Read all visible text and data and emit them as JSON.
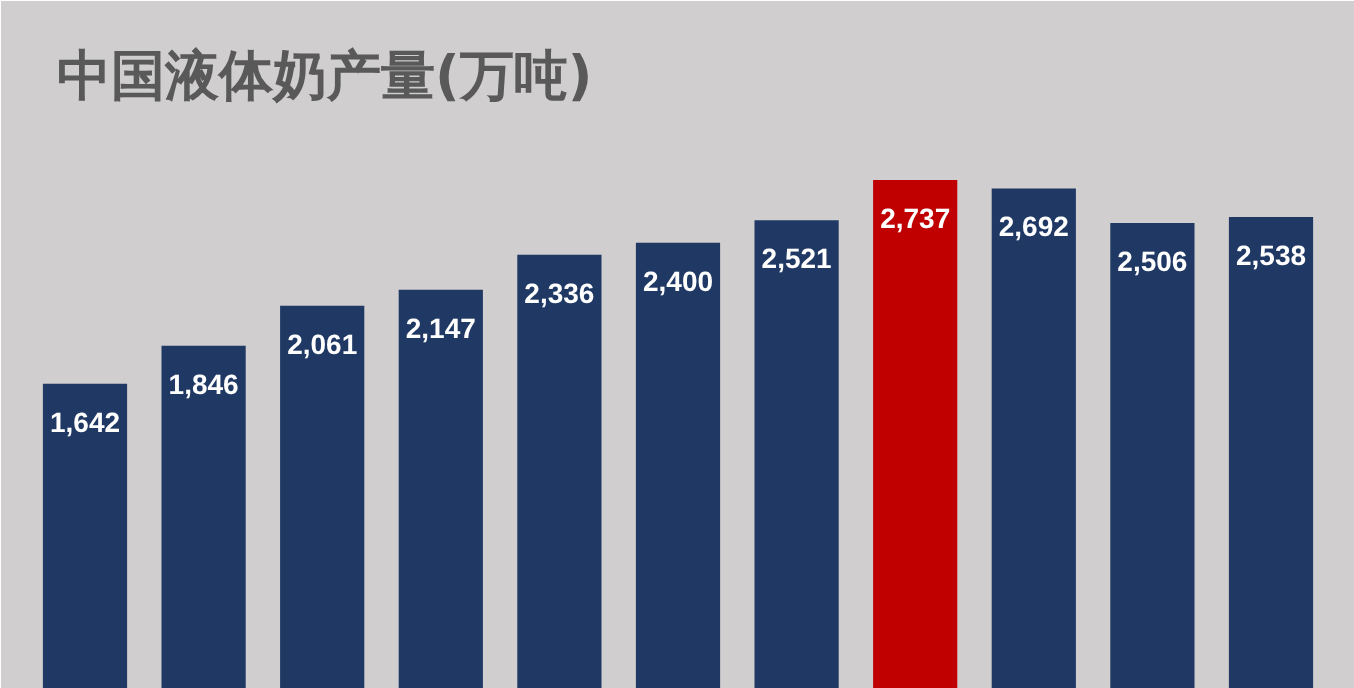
{
  "chart_data": {
    "type": "bar",
    "title": "中国液体奶产量(万吨)",
    "categories": [
      null,
      null,
      null,
      null,
      null,
      null,
      null,
      null,
      null,
      null,
      null
    ],
    "values": [
      1642,
      1846,
      2061,
      2147,
      2336,
      2400,
      2521,
      2737,
      2692,
      2506,
      2538
    ],
    "colors": [
      "#1f3864",
      "#1f3864",
      "#1f3864",
      "#1f3864",
      "#1f3864",
      "#1f3864",
      "#1f3864",
      "#c00000",
      "#1f3864",
      "#1f3864",
      "#1f3864"
    ],
    "value_labels": [
      "1,642",
      "1,846",
      "2,061",
      "2,147",
      "2,336",
      "2,400",
      "2,521",
      "2,737",
      "2,692",
      "2,506",
      "2,538"
    ]
  }
}
